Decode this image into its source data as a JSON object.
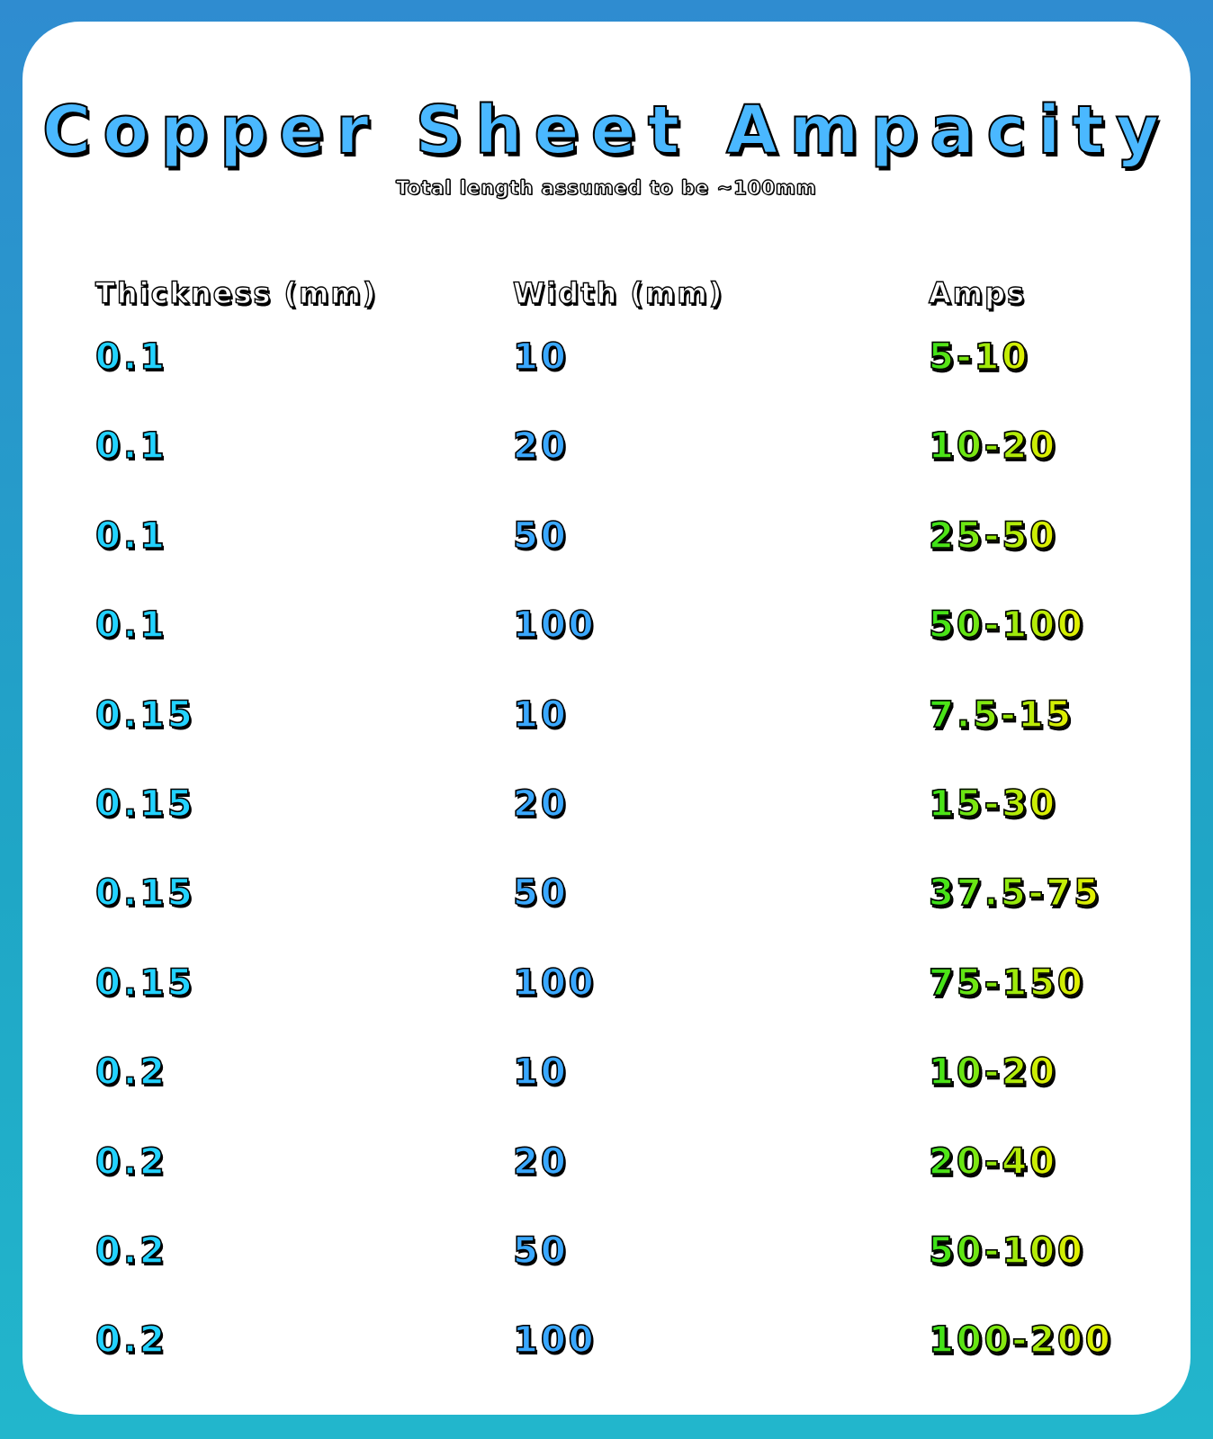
{
  "title": "Copper Sheet Ampacity",
  "subtitle": "Total length assumed to be ~100mm",
  "columns": {
    "thickness": "Thickness (mm)",
    "width": "Width (mm)",
    "amps": "Amps"
  },
  "colors": {
    "background_top": "#2f8cd0",
    "background_bottom": "#22b6cc",
    "title": "#4ab8ff",
    "thickness": "#22d2ff",
    "width": "#3aa8ff",
    "amps_start": "#35e21a",
    "amps_end": "#e8f000"
  },
  "rows": [
    {
      "thickness": "0.1",
      "width": "10",
      "amps": "5-10"
    },
    {
      "thickness": "0.1",
      "width": "20",
      "amps": "10-20"
    },
    {
      "thickness": "0.1",
      "width": "50",
      "amps": "25-50"
    },
    {
      "thickness": "0.1",
      "width": "100",
      "amps": "50-100"
    },
    {
      "thickness": "0.15",
      "width": "10",
      "amps": "7.5-15"
    },
    {
      "thickness": "0.15",
      "width": "20",
      "amps": "15-30"
    },
    {
      "thickness": "0.15",
      "width": "50",
      "amps": "37.5-75"
    },
    {
      "thickness": "0.15",
      "width": "100",
      "amps": "75-150"
    },
    {
      "thickness": "0.2",
      "width": "10",
      "amps": "10-20"
    },
    {
      "thickness": "0.2",
      "width": "20",
      "amps": "20-40"
    },
    {
      "thickness": "0.2",
      "width": "50",
      "amps": "50-100"
    },
    {
      "thickness": "0.2",
      "width": "100",
      "amps": "100-200"
    }
  ]
}
